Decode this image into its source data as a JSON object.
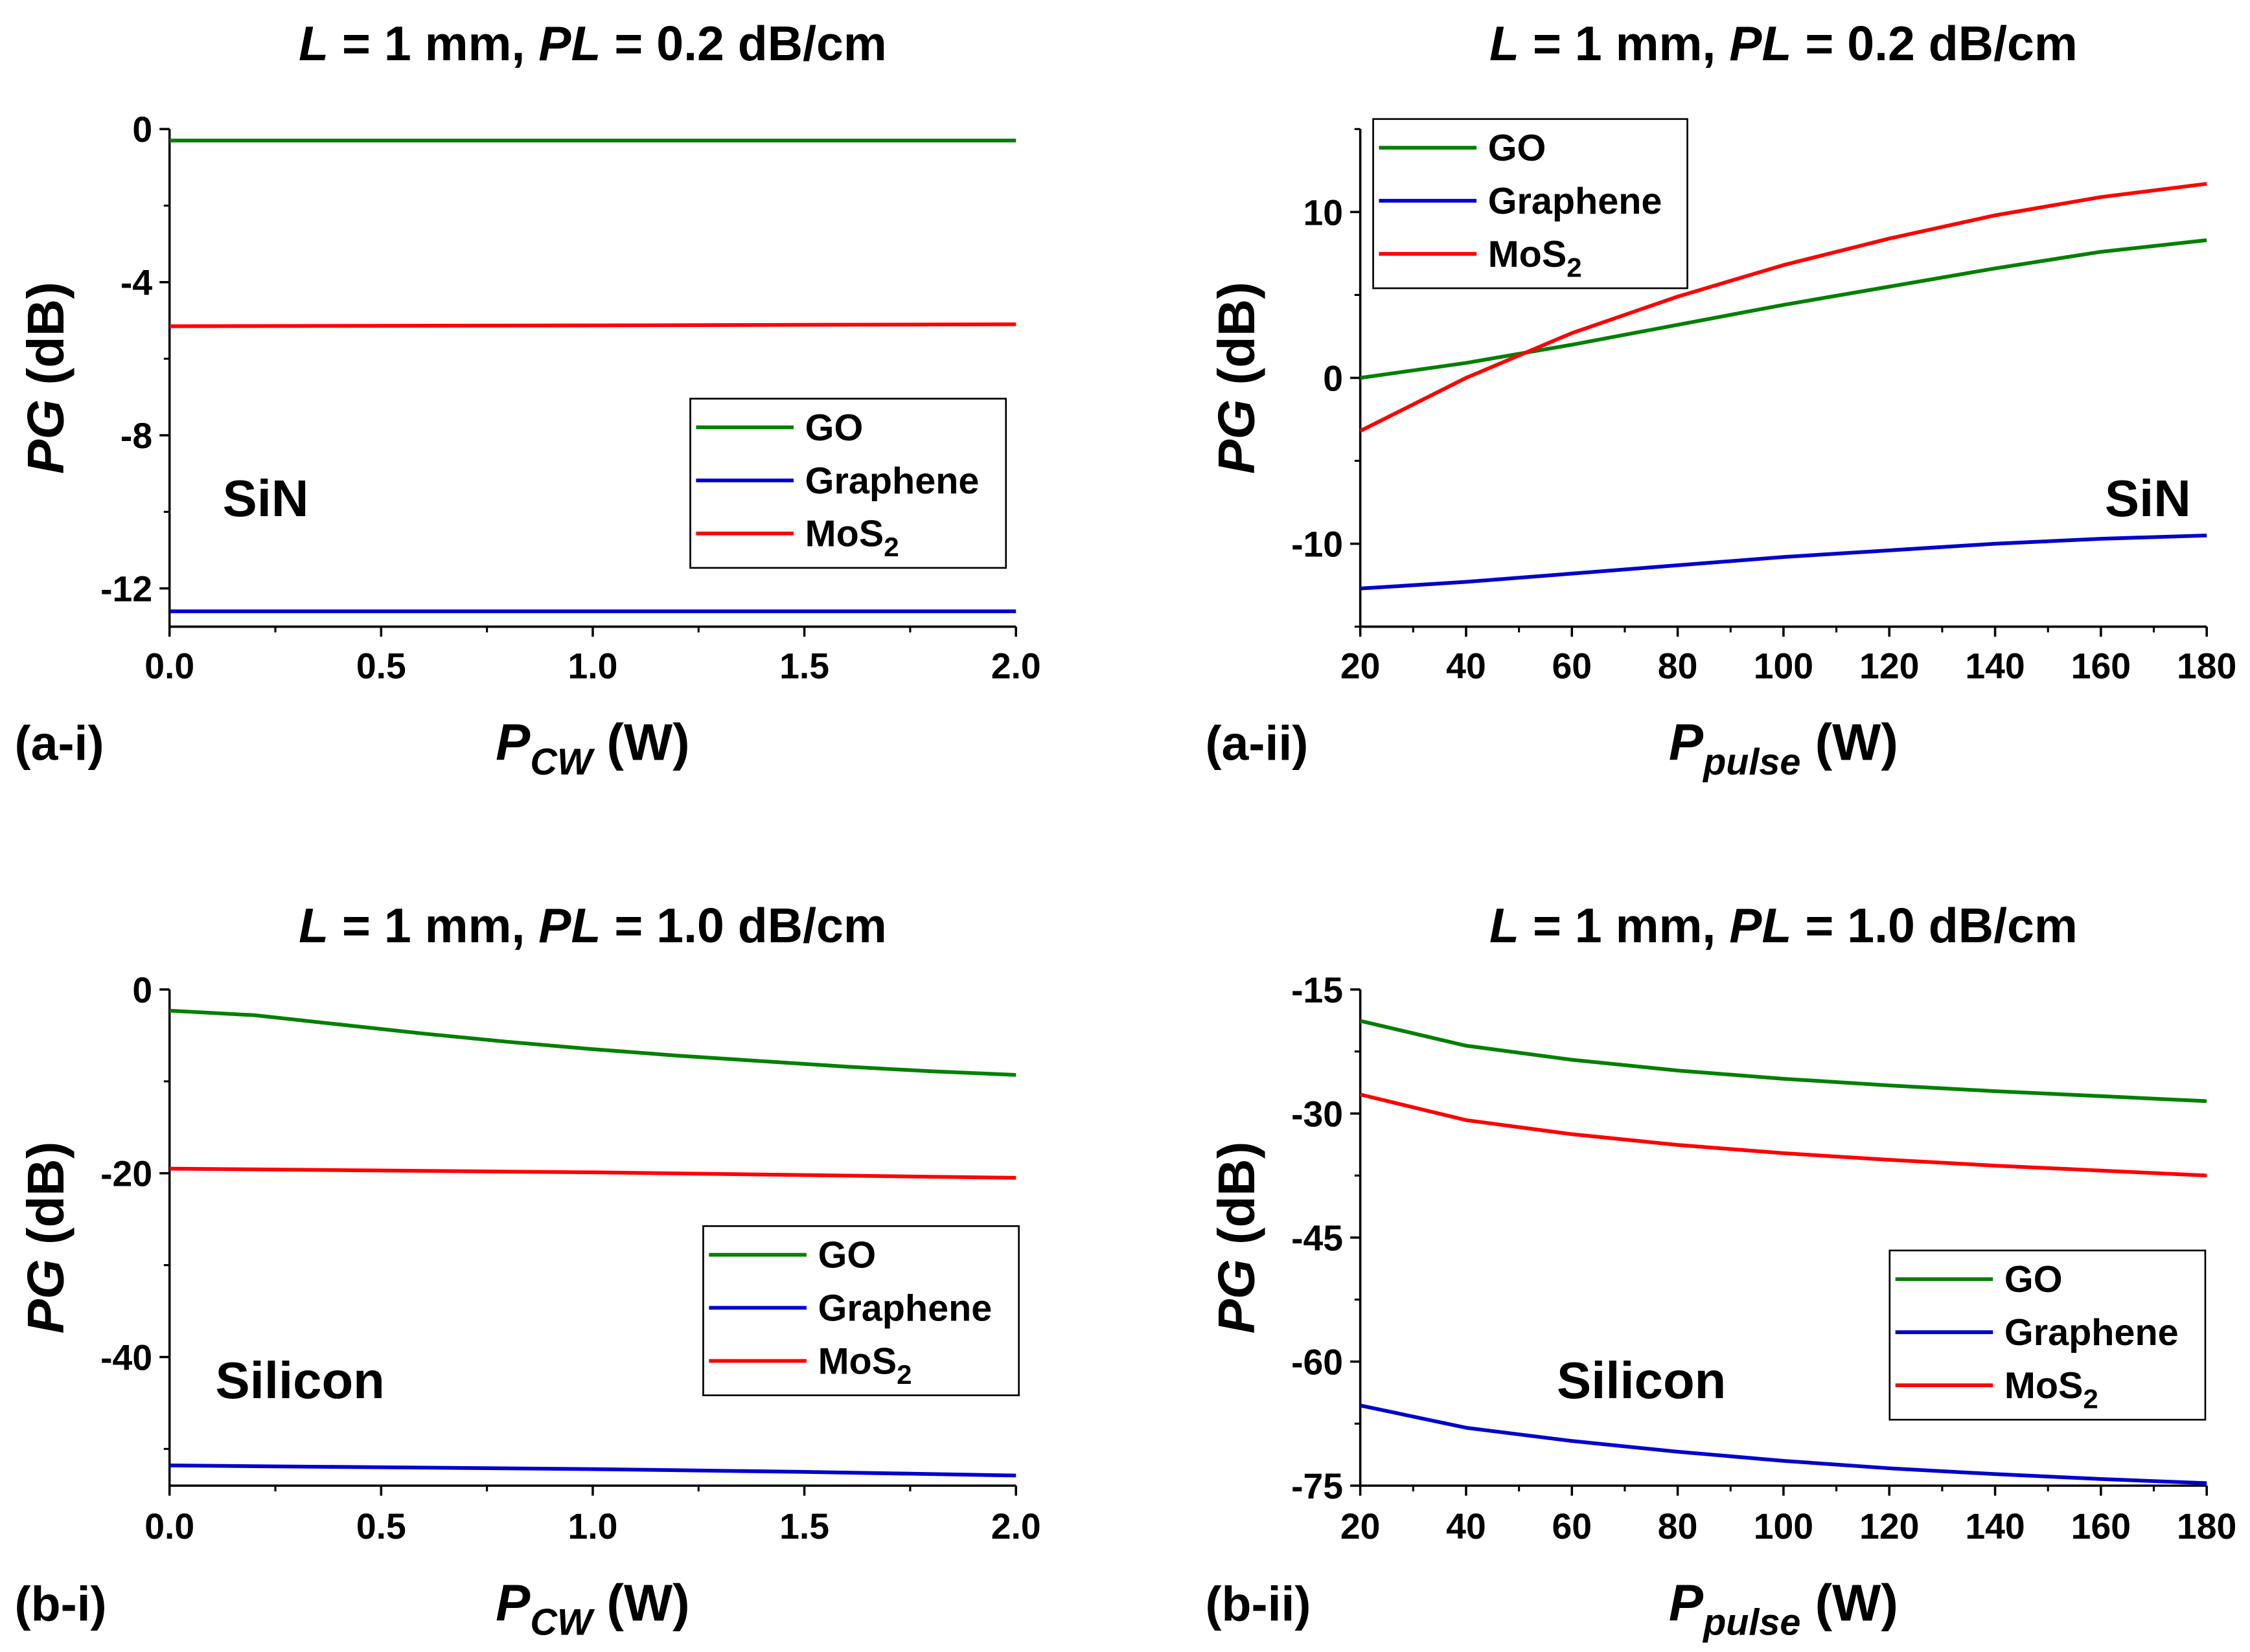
{
  "chart_data": [
    {
      "type": "line",
      "panel_label": "(a-i)",
      "title": {
        "a": "L",
        "b": " = 1 mm, ",
        "c": "PL",
        "d": " = 0.2 dB/cm"
      },
      "xlabel": {
        "main": "P",
        "sub": "CW",
        "unit": " (W)"
      },
      "ylabel": {
        "main": "PG",
        "unit": " (dB)"
      },
      "annotation": "SiN",
      "legend_position": "center-right",
      "xlim": [
        0,
        2
      ],
      "ylim": [
        -13,
        0
      ],
      "xticks": [
        0,
        0.5,
        1.0,
        1.5,
        2.0
      ],
      "xtick_labels": [
        "0.0",
        "0.5",
        "1.0",
        "1.5",
        "2.0"
      ],
      "yticks": [
        0,
        -4,
        -8,
        -12
      ],
      "ytick_labels": [
        "0",
        "-4",
        "-8",
        "-12"
      ],
      "series": [
        {
          "name": "GO",
          "color": "#008000",
          "x": [
            0,
            2
          ],
          "y": [
            -0.3,
            -0.3
          ]
        },
        {
          "name": "Graphene",
          "color": "#0000cc",
          "x": [
            0,
            2
          ],
          "y": [
            -12.6,
            -12.6
          ]
        },
        {
          "name": "MoS",
          "name_sub": "2",
          "color": "#ff0000",
          "x": [
            0,
            1,
            2
          ],
          "y": [
            -5.15,
            -5.13,
            -5.1
          ]
        }
      ]
    },
    {
      "type": "line",
      "panel_label": "(a-ii)",
      "title": {
        "a": "L",
        "b": " = 1 mm, ",
        "c": "PL",
        "d": " = 0.2 dB/cm"
      },
      "xlabel": {
        "main": "P",
        "sub": "pulse",
        "unit": " (W)"
      },
      "ylabel": {
        "main": "PG",
        "unit": " (dB)"
      },
      "annotation": "SiN",
      "legend_position": "top-left",
      "xlim": [
        20,
        180
      ],
      "ylim": [
        -15,
        15
      ],
      "xticks": [
        20,
        40,
        60,
        80,
        100,
        120,
        140,
        160,
        180
      ],
      "xtick_labels": [
        "20",
        "40",
        "60",
        "80",
        "100",
        "120",
        "140",
        "160",
        "180"
      ],
      "yticks": [
        10,
        0,
        -10
      ],
      "ytick_labels": [
        "10",
        "0",
        "-10"
      ],
      "series": [
        {
          "name": "GO",
          "color": "#008000",
          "x": [
            20,
            40,
            60,
            80,
            100,
            120,
            140,
            160,
            180
          ],
          "y": [
            0.0,
            0.9,
            2.0,
            3.2,
            4.4,
            5.5,
            6.6,
            7.6,
            8.3
          ]
        },
        {
          "name": "Graphene",
          "color": "#0000cc",
          "x": [
            20,
            40,
            60,
            80,
            100,
            120,
            140,
            160,
            180
          ],
          "y": [
            -12.7,
            -12.3,
            -11.8,
            -11.3,
            -10.8,
            -10.4,
            -10.0,
            -9.7,
            -9.5
          ]
        },
        {
          "name": "MoS",
          "name_sub": "2",
          "color": "#ff0000",
          "x": [
            20,
            40,
            60,
            80,
            100,
            120,
            140,
            160,
            180
          ],
          "y": [
            -3.2,
            0.0,
            2.7,
            4.9,
            6.8,
            8.4,
            9.8,
            10.9,
            11.7
          ]
        }
      ]
    },
    {
      "type": "line",
      "panel_label": "(b-i)",
      "title": {
        "a": "L",
        "b": " = 1 mm, ",
        "c": "PL",
        "d": " = 1.0 dB/cm"
      },
      "xlabel": {
        "main": "P",
        "sub": "CW",
        "unit": " (W)"
      },
      "ylabel": {
        "main": "PG",
        "unit": " (dB)"
      },
      "annotation": "Silicon",
      "legend_position": "center-right",
      "xlim": [
        0,
        2
      ],
      "ylim": [
        -54,
        0
      ],
      "xticks": [
        0,
        0.5,
        1.0,
        1.5,
        2.0
      ],
      "xtick_labels": [
        "0.0",
        "0.5",
        "1.0",
        "1.5",
        "2.0"
      ],
      "yticks": [
        0,
        -20,
        -40
      ],
      "ytick_labels": [
        "0",
        "-20",
        "-40"
      ],
      "series": [
        {
          "name": "GO",
          "color": "#008000",
          "x": [
            0,
            0.2,
            0.4,
            0.6,
            0.8,
            1.0,
            1.2,
            1.4,
            1.6,
            1.8,
            2.0
          ],
          "y": [
            -2.3,
            -2.8,
            -3.8,
            -4.8,
            -5.7,
            -6.5,
            -7.2,
            -7.8,
            -8.4,
            -8.9,
            -9.3
          ]
        },
        {
          "name": "Graphene",
          "color": "#0000cc",
          "x": [
            0,
            0.5,
            1.0,
            1.5,
            2.0
          ],
          "y": [
            -51.8,
            -52.0,
            -52.2,
            -52.5,
            -52.9
          ]
        },
        {
          "name": "MoS",
          "name_sub": "2",
          "color": "#ff0000",
          "x": [
            0,
            0.5,
            1.0,
            1.5,
            2.0
          ],
          "y": [
            -19.5,
            -19.7,
            -19.9,
            -20.2,
            -20.5
          ]
        }
      ]
    },
    {
      "type": "line",
      "panel_label": "(b-ii)",
      "title": {
        "a": "L",
        "b": " = 1 mm, ",
        "c": "PL",
        "d": " = 1.0 dB/cm"
      },
      "xlabel": {
        "main": "P",
        "sub": "pulse",
        "unit": " (W)"
      },
      "ylabel": {
        "main": "PG",
        "unit": " (dB)"
      },
      "annotation": "Silicon",
      "legend_position": "lower-right",
      "xlim": [
        20,
        180
      ],
      "ylim": [
        -75,
        -15
      ],
      "xticks": [
        20,
        40,
        60,
        80,
        100,
        120,
        140,
        160,
        180
      ],
      "xtick_labels": [
        "20",
        "40",
        "60",
        "80",
        "100",
        "120",
        "140",
        "160",
        "180"
      ],
      "yticks": [
        -15,
        -30,
        -45,
        -60,
        -75
      ],
      "ytick_labels": [
        "-15",
        "-30",
        "-45",
        "-60",
        "-75"
      ],
      "series": [
        {
          "name": "GO",
          "color": "#008000",
          "x": [
            20,
            40,
            60,
            80,
            100,
            120,
            140,
            160,
            180
          ],
          "y": [
            -18.8,
            -21.8,
            -23.5,
            -24.8,
            -25.8,
            -26.6,
            -27.3,
            -27.9,
            -28.5
          ]
        },
        {
          "name": "Graphene",
          "color": "#0000cc",
          "x": [
            20,
            40,
            60,
            80,
            100,
            120,
            140,
            160,
            180
          ],
          "y": [
            -65.3,
            -68.0,
            -69.6,
            -70.9,
            -72.0,
            -72.9,
            -73.6,
            -74.2,
            -74.7
          ]
        },
        {
          "name": "MoS",
          "name_sub": "2",
          "color": "#ff0000",
          "x": [
            20,
            40,
            60,
            80,
            100,
            120,
            140,
            160,
            180
          ],
          "y": [
            -27.7,
            -30.8,
            -32.5,
            -33.8,
            -34.8,
            -35.6,
            -36.3,
            -36.9,
            -37.5
          ]
        }
      ]
    }
  ]
}
